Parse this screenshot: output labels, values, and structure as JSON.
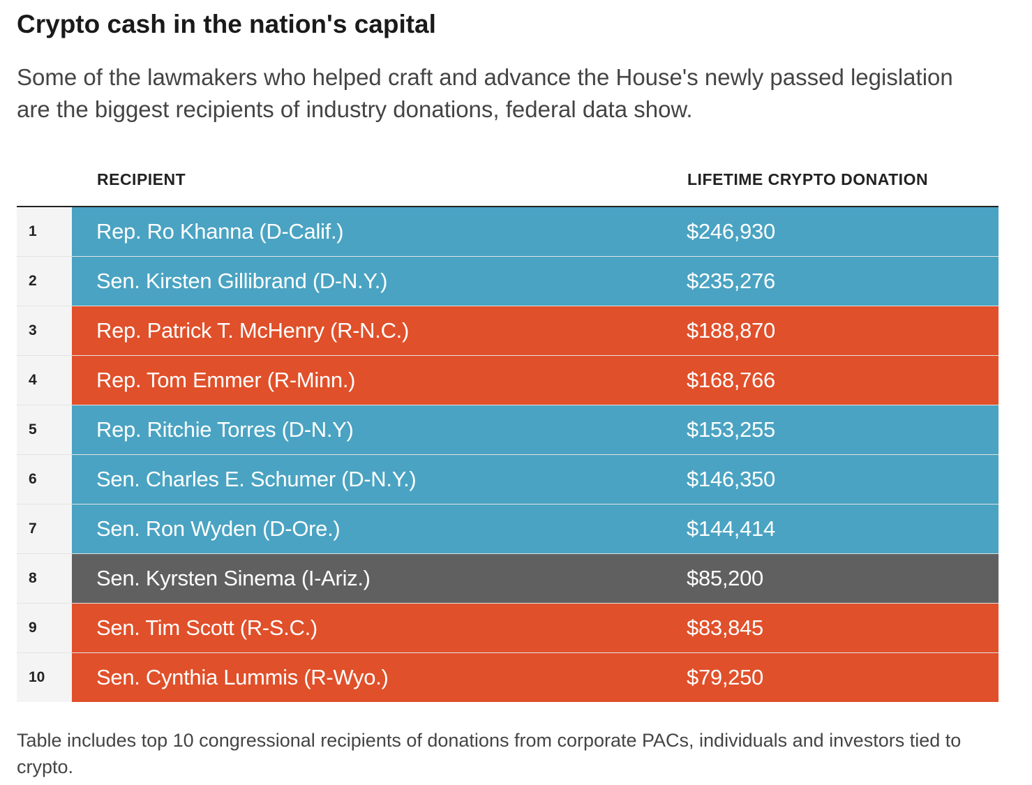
{
  "title": "Crypto cash in the nation's capital",
  "subtitle": "Some of the lawmakers who helped craft and advance the House's newly passed legislation are the biggest recipients of industry donations, federal data show.",
  "note": "Table includes top 10 congressional recipients of donations from corporate PACs, individuals and investors tied to crypto.",
  "colors": {
    "D": "#4aa3c2",
    "R": "#e0502a",
    "I": "#606060"
  },
  "chart_data": {
    "type": "table",
    "columns": [
      "",
      "RECIPIENT",
      "LIFETIME CRYPTO DONATION"
    ],
    "rows": [
      {
        "rank": "1",
        "recipient": "Rep. Ro Khanna (D-Calif.)",
        "donation": "$246,930",
        "value": 246930,
        "party": "D"
      },
      {
        "rank": "2",
        "recipient": "Sen. Kirsten Gillibrand (D-N.Y.)",
        "donation": "$235,276",
        "value": 235276,
        "party": "D"
      },
      {
        "rank": "3",
        "recipient": "Rep. Patrick T. McHenry (R-N.C.)",
        "donation": "$188,870",
        "value": 188870,
        "party": "R"
      },
      {
        "rank": "4",
        "recipient": "Rep. Tom Emmer (R-Minn.)",
        "donation": "$168,766",
        "value": 168766,
        "party": "R"
      },
      {
        "rank": "5",
        "recipient": "Rep. Ritchie Torres (D-N.Y)",
        "donation": "$153,255",
        "value": 153255,
        "party": "D"
      },
      {
        "rank": "6",
        "recipient": "Sen. Charles E. Schumer (D-N.Y.)",
        "donation": "$146,350",
        "value": 146350,
        "party": "D"
      },
      {
        "rank": "7",
        "recipient": "Sen. Ron Wyden (D-Ore.)",
        "donation": "$144,414",
        "value": 144414,
        "party": "D"
      },
      {
        "rank": "8",
        "recipient": "Sen. Kyrsten Sinema (I-Ariz.)",
        "donation": "$85,200",
        "value": 85200,
        "party": "I"
      },
      {
        "rank": "9",
        "recipient": "Sen. Tim Scott (R-S.C.)",
        "donation": "$83,845",
        "value": 83845,
        "party": "R"
      },
      {
        "rank": "10",
        "recipient": "Sen. Cynthia Lummis (R-Wyo.)",
        "donation": "$79,250",
        "value": 79250,
        "party": "R"
      }
    ]
  }
}
